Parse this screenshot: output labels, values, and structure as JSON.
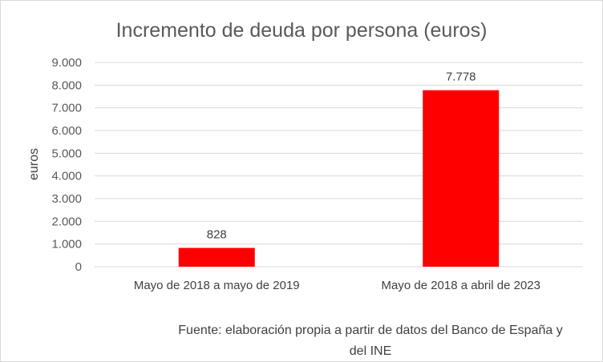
{
  "chart_data": {
    "type": "bar",
    "title": "Incremento de deuda por persona (euros)",
    "ylabel": "euros",
    "xlabel": "",
    "categories": [
      "Mayo de 2018 a mayo de 2019",
      "Mayo de 2018 a abril de 2023"
    ],
    "values": [
      828,
      7778
    ],
    "value_labels": [
      "828",
      "7.778"
    ],
    "ylim": [
      0,
      9000
    ],
    "yticks": [
      0,
      1000,
      2000,
      3000,
      4000,
      5000,
      6000,
      7000,
      8000,
      9000
    ],
    "ytick_labels": [
      "0",
      "1.000",
      "2.000",
      "3.000",
      "4.000",
      "5.000",
      "6.000",
      "7.000",
      "8.000",
      "9.000"
    ],
    "grid": true,
    "legend": "none",
    "bar_color": "#ff0000",
    "gridline_color": "#d9d9d9"
  },
  "source_lines": [
    "Fuente: elaboración propia a partir de datos del Banco de España y",
    "del INE"
  ]
}
